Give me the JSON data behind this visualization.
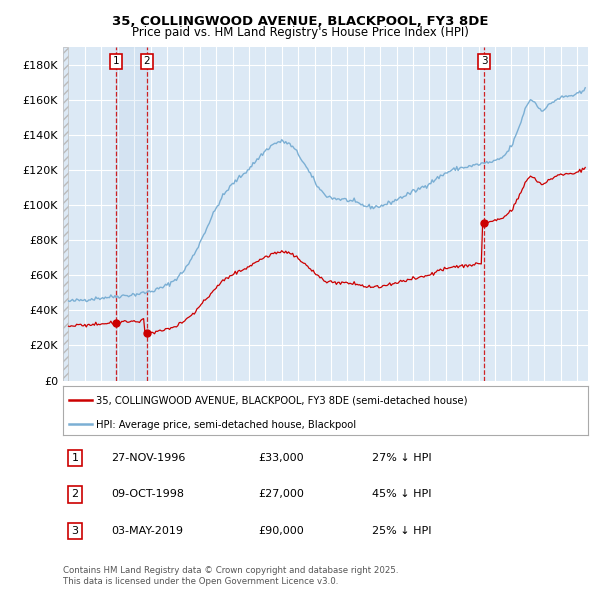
{
  "title_line1": "35, COLLINGWOOD AVENUE, BLACKPOOL, FY3 8DE",
  "title_line2": "Price paid vs. HM Land Registry's House Price Index (HPI)",
  "red_label": "35, COLLINGWOOD AVENUE, BLACKPOOL, FY3 8DE (semi-detached house)",
  "blue_label": "HPI: Average price, semi-detached house, Blackpool",
  "sale_labels_table": [
    {
      "num": "1",
      "date": "27-NOV-1996",
      "price": "£33,000",
      "pct": "27% ↓ HPI"
    },
    {
      "num": "2",
      "date": "09-OCT-1998",
      "price": "£27,000",
      "pct": "45% ↓ HPI"
    },
    {
      "num": "3",
      "date": "03-MAY-2019",
      "price": "£90,000",
      "pct": "25% ↓ HPI"
    }
  ],
  "ylim": [
    0,
    190000
  ],
  "yticks": [
    0,
    20000,
    40000,
    60000,
    80000,
    100000,
    120000,
    140000,
    160000,
    180000
  ],
  "ytick_labels": [
    "£0",
    "£20K",
    "£40K",
    "£60K",
    "£80K",
    "£100K",
    "£120K",
    "£140K",
    "£160K",
    "£180K"
  ],
  "fig_bg_color": "#ffffff",
  "plot_bg_color": "#dce9f5",
  "red_color": "#cc0000",
  "blue_color": "#7bafd4",
  "grid_color": "#ffffff",
  "vline_color": "#cc0000",
  "footer_text": "Contains HM Land Registry data © Crown copyright and database right 2025.\nThis data is licensed under the Open Government Licence v3.0."
}
